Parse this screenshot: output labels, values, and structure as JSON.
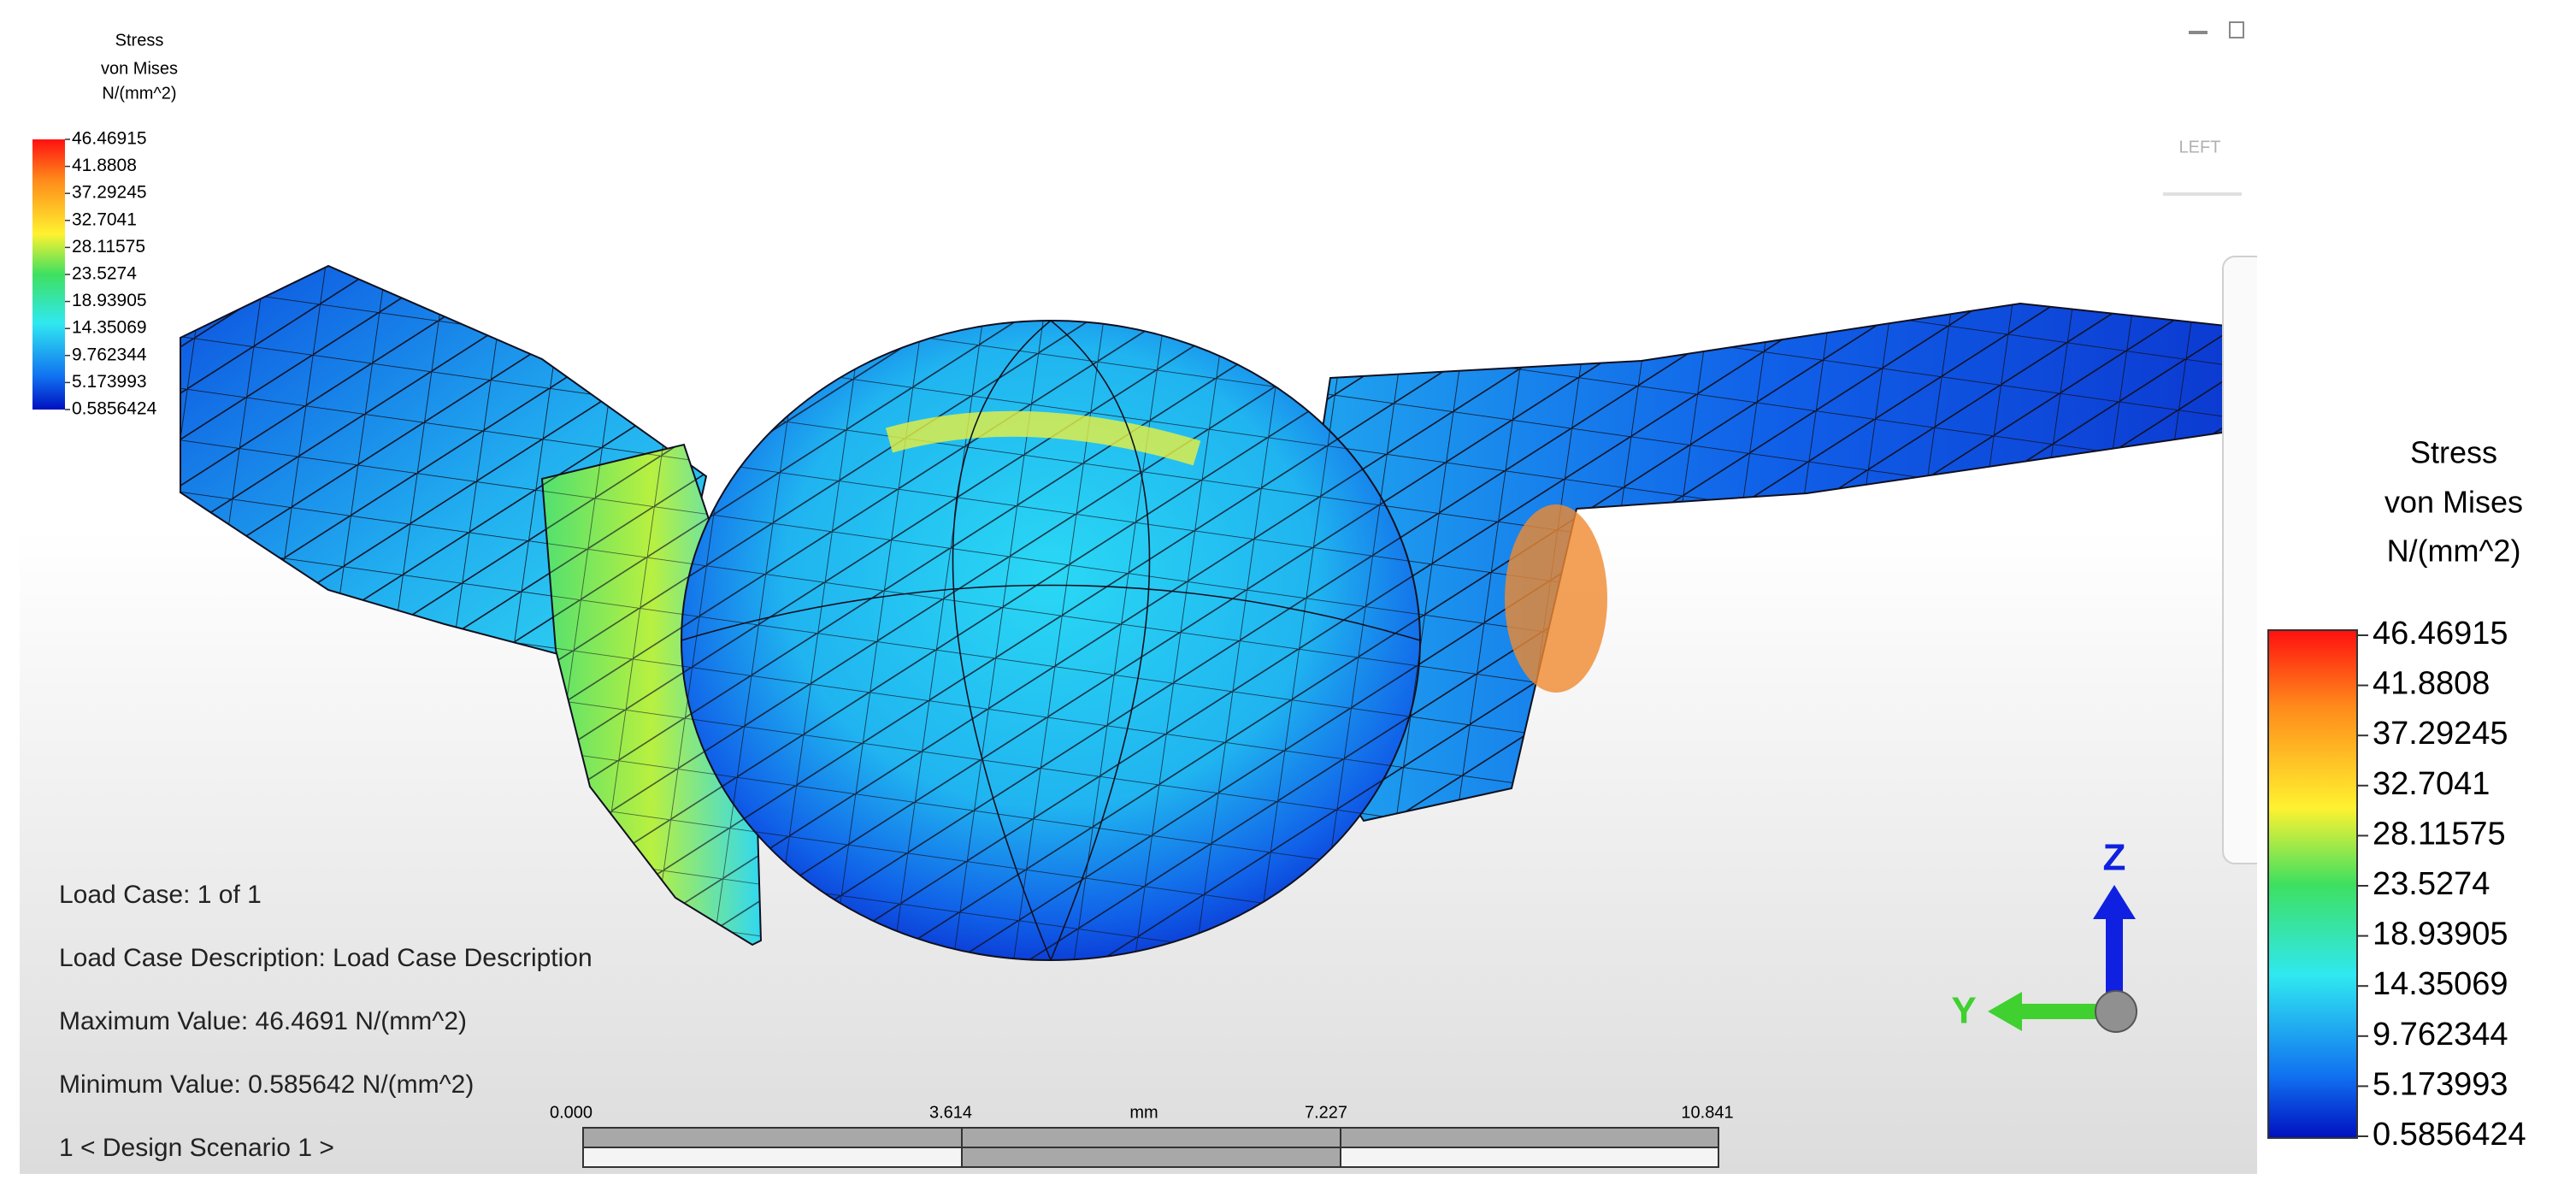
{
  "legend": {
    "title": [
      "Stress",
      "von Mises",
      "N/(mm^2)"
    ],
    "labels": [
      "46.46915",
      "41.8808",
      "37.29245",
      "32.7041",
      "28.11575",
      "23.5274",
      "18.93905",
      "14.35069",
      "9.762344",
      "5.173993",
      "0.5856424"
    ]
  },
  "view_cube": "LEFT",
  "info": [
    "Load Case:  1 of 1",
    "Load Case Description:  Load Case Description",
    "Maximum Value: 46.4691 N/(mm^2)",
    "Minimum Value: 0.585642 N/(mm^2)",
    "1 < Design Scenario 1 >"
  ],
  "scale_bar": {
    "unit": "mm",
    "ticks": [
      "0.000",
      "3.614",
      "7.227",
      "10.841"
    ]
  },
  "triad": {
    "z": "Z",
    "y": "Y"
  }
}
